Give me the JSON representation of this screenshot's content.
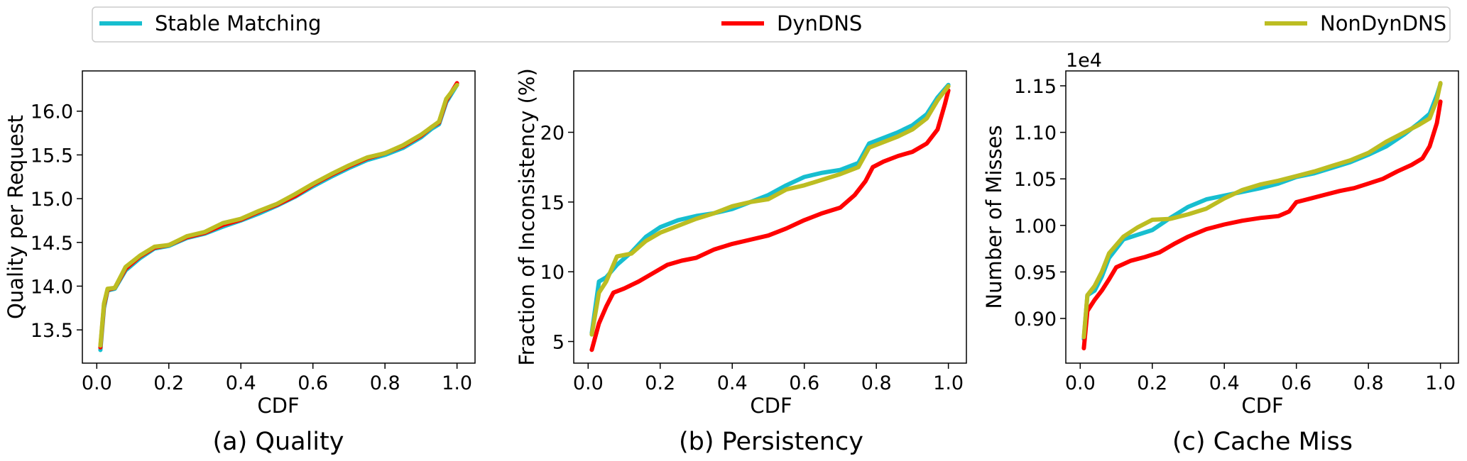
{
  "legend": [
    {
      "name": "Stable Matching",
      "color": "#17becf"
    },
    {
      "name": "DynDNS",
      "color": "#ff0000"
    },
    {
      "name": "NonDynDNS",
      "color": "#bcbd22"
    }
  ],
  "chart_data": [
    {
      "type": "line",
      "caption": "(a)  Quality",
      "xlabel": "CDF",
      "ylabel": "Quality per Request",
      "xlim": [
        -0.04,
        1.05
      ],
      "ylim": [
        13.12,
        16.46
      ],
      "xticks": [
        0.0,
        0.2,
        0.4,
        0.6,
        0.8,
        1.0
      ],
      "xtick_labels": [
        "0.0",
        "0.2",
        "0.4",
        "0.6",
        "0.8",
        "1.0"
      ],
      "yticks": [
        13.5,
        14.0,
        14.5,
        15.0,
        15.5,
        16.0
      ],
      "ytick_labels": [
        "13.5",
        "14.0",
        "14.5",
        "15.0",
        "15.5",
        "16.0"
      ],
      "offset_text": "",
      "grid": false,
      "series": [
        {
          "name": "Stable Matching",
          "color": "#17becf",
          "points": [
            [
              0.01,
              13.27
            ],
            [
              0.02,
              13.75
            ],
            [
              0.03,
              13.95
            ],
            [
              0.05,
              13.97
            ],
            [
              0.08,
              14.18
            ],
            [
              0.12,
              14.32
            ],
            [
              0.16,
              14.43
            ],
            [
              0.2,
              14.46
            ],
            [
              0.25,
              14.55
            ],
            [
              0.3,
              14.6
            ],
            [
              0.35,
              14.68
            ],
            [
              0.4,
              14.75
            ],
            [
              0.45,
              14.83
            ],
            [
              0.5,
              14.92
            ],
            [
              0.55,
              15.02
            ],
            [
              0.6,
              15.14
            ],
            [
              0.65,
              15.25
            ],
            [
              0.7,
              15.35
            ],
            [
              0.75,
              15.44
            ],
            [
              0.8,
              15.5
            ],
            [
              0.85,
              15.58
            ],
            [
              0.9,
              15.7
            ],
            [
              0.93,
              15.8
            ],
            [
              0.95,
              15.85
            ],
            [
              0.97,
              16.1
            ],
            [
              1.0,
              16.3
            ]
          ]
        },
        {
          "name": "DynDNS",
          "color": "#ff0000",
          "points": [
            [
              0.01,
              13.3
            ],
            [
              0.02,
              13.78
            ],
            [
              0.03,
              13.96
            ],
            [
              0.05,
              13.98
            ],
            [
              0.08,
              14.2
            ],
            [
              0.12,
              14.34
            ],
            [
              0.16,
              14.44
            ],
            [
              0.2,
              14.47
            ],
            [
              0.25,
              14.56
            ],
            [
              0.3,
              14.61
            ],
            [
              0.35,
              14.7
            ],
            [
              0.4,
              14.76
            ],
            [
              0.45,
              14.85
            ],
            [
              0.5,
              14.93
            ],
            [
              0.55,
              15.03
            ],
            [
              0.6,
              15.16
            ],
            [
              0.65,
              15.27
            ],
            [
              0.7,
              15.37
            ],
            [
              0.75,
              15.46
            ],
            [
              0.8,
              15.52
            ],
            [
              0.85,
              15.6
            ],
            [
              0.9,
              15.72
            ],
            [
              0.93,
              15.82
            ],
            [
              0.95,
              15.87
            ],
            [
              0.97,
              16.12
            ],
            [
              1.0,
              16.32
            ]
          ]
        },
        {
          "name": "NonDynDNS",
          "color": "#bcbd22",
          "points": [
            [
              0.01,
              13.32
            ],
            [
              0.02,
              13.8
            ],
            [
              0.03,
              13.97
            ],
            [
              0.05,
              13.98
            ],
            [
              0.08,
              14.22
            ],
            [
              0.12,
              14.35
            ],
            [
              0.16,
              14.45
            ],
            [
              0.2,
              14.47
            ],
            [
              0.25,
              14.57
            ],
            [
              0.3,
              14.62
            ],
            [
              0.35,
              14.72
            ],
            [
              0.4,
              14.77
            ],
            [
              0.45,
              14.86
            ],
            [
              0.5,
              14.94
            ],
            [
              0.55,
              15.05
            ],
            [
              0.6,
              15.17
            ],
            [
              0.65,
              15.28
            ],
            [
              0.7,
              15.38
            ],
            [
              0.75,
              15.47
            ],
            [
              0.8,
              15.52
            ],
            [
              0.85,
              15.61
            ],
            [
              0.9,
              15.73
            ],
            [
              0.93,
              15.82
            ],
            [
              0.95,
              15.88
            ],
            [
              0.97,
              16.14
            ],
            [
              1.0,
              16.3
            ]
          ]
        }
      ]
    },
    {
      "type": "line",
      "caption": "(b)  Persistency",
      "xlabel": "CDF",
      "ylabel": "Fraction of Inconsistency (%)",
      "xlim": [
        -0.04,
        1.05
      ],
      "ylim": [
        3.45,
        24.4
      ],
      "xticks": [
        0.0,
        0.2,
        0.4,
        0.6,
        0.8,
        1.0
      ],
      "xtick_labels": [
        "0.0",
        "0.2",
        "0.4",
        "0.6",
        "0.8",
        "1.0"
      ],
      "yticks": [
        5,
        10,
        15,
        20
      ],
      "ytick_labels": [
        "5",
        "10",
        "15",
        "20"
      ],
      "offset_text": "",
      "grid": false,
      "series": [
        {
          "name": "Stable Matching",
          "color": "#17becf",
          "points": [
            [
              0.01,
              5.6
            ],
            [
              0.03,
              9.3
            ],
            [
              0.05,
              9.6
            ],
            [
              0.08,
              10.5
            ],
            [
              0.12,
              11.4
            ],
            [
              0.16,
              12.5
            ],
            [
              0.2,
              13.2
            ],
            [
              0.25,
              13.7
            ],
            [
              0.3,
              14.0
            ],
            [
              0.35,
              14.2
            ],
            [
              0.4,
              14.5
            ],
            [
              0.45,
              15.0
            ],
            [
              0.5,
              15.5
            ],
            [
              0.55,
              16.2
            ],
            [
              0.6,
              16.8
            ],
            [
              0.65,
              17.1
            ],
            [
              0.7,
              17.3
            ],
            [
              0.75,
              17.8
            ],
            [
              0.78,
              19.2
            ],
            [
              0.82,
              19.6
            ],
            [
              0.86,
              20.0
            ],
            [
              0.9,
              20.5
            ],
            [
              0.94,
              21.3
            ],
            [
              0.97,
              22.5
            ],
            [
              1.0,
              23.4
            ]
          ]
        },
        {
          "name": "DynDNS",
          "color": "#ff0000",
          "points": [
            [
              0.01,
              4.4
            ],
            [
              0.03,
              6.3
            ],
            [
              0.05,
              7.5
            ],
            [
              0.07,
              8.5
            ],
            [
              0.1,
              8.8
            ],
            [
              0.14,
              9.3
            ],
            [
              0.18,
              9.9
            ],
            [
              0.22,
              10.5
            ],
            [
              0.26,
              10.8
            ],
            [
              0.3,
              11.0
            ],
            [
              0.35,
              11.6
            ],
            [
              0.4,
              12.0
            ],
            [
              0.45,
              12.3
            ],
            [
              0.5,
              12.6
            ],
            [
              0.55,
              13.1
            ],
            [
              0.6,
              13.7
            ],
            [
              0.65,
              14.2
            ],
            [
              0.7,
              14.6
            ],
            [
              0.74,
              15.5
            ],
            [
              0.77,
              16.5
            ],
            [
              0.79,
              17.5
            ],
            [
              0.82,
              17.9
            ],
            [
              0.86,
              18.3
            ],
            [
              0.9,
              18.6
            ],
            [
              0.94,
              19.2
            ],
            [
              0.97,
              20.2
            ],
            [
              0.99,
              22.0
            ],
            [
              1.0,
              23.0
            ]
          ]
        },
        {
          "name": "NonDynDNS",
          "color": "#bcbd22",
          "points": [
            [
              0.01,
              5.5
            ],
            [
              0.03,
              8.5
            ],
            [
              0.05,
              9.3
            ],
            [
              0.08,
              11.1
            ],
            [
              0.12,
              11.3
            ],
            [
              0.16,
              12.2
            ],
            [
              0.2,
              12.8
            ],
            [
              0.25,
              13.3
            ],
            [
              0.3,
              13.8
            ],
            [
              0.35,
              14.2
            ],
            [
              0.4,
              14.7
            ],
            [
              0.45,
              15.0
            ],
            [
              0.5,
              15.2
            ],
            [
              0.55,
              15.9
            ],
            [
              0.6,
              16.2
            ],
            [
              0.65,
              16.6
            ],
            [
              0.7,
              17.0
            ],
            [
              0.75,
              17.5
            ],
            [
              0.78,
              18.9
            ],
            [
              0.82,
              19.3
            ],
            [
              0.86,
              19.7
            ],
            [
              0.9,
              20.2
            ],
            [
              0.94,
              21.0
            ],
            [
              0.97,
              22.3
            ],
            [
              1.0,
              23.3
            ]
          ]
        }
      ]
    },
    {
      "type": "line",
      "caption": "(c)  Cache Miss",
      "xlabel": "CDF",
      "ylabel": "Number of Misses",
      "xlim": [
        -0.04,
        1.05
      ],
      "ylim": [
        8520,
        11660
      ],
      "xticks": [
        0.0,
        0.2,
        0.4,
        0.6,
        0.8,
        1.0
      ],
      "xtick_labels": [
        "0.0",
        "0.2",
        "0.4",
        "0.6",
        "0.8",
        "1.0"
      ],
      "yticks": [
        9000,
        9500,
        10000,
        10500,
        11000,
        11500
      ],
      "ytick_labels": [
        "0.90",
        "0.95",
        "1.00",
        "1.05",
        "1.10",
        "1.15"
      ],
      "offset_text": "1e4",
      "grid": false,
      "series": [
        {
          "name": "Stable Matching",
          "color": "#17becf",
          "points": [
            [
              0.01,
              8780
            ],
            [
              0.02,
              9250
            ],
            [
              0.04,
              9300
            ],
            [
              0.06,
              9450
            ],
            [
              0.08,
              9650
            ],
            [
              0.12,
              9850
            ],
            [
              0.16,
              9900
            ],
            [
              0.2,
              9950
            ],
            [
              0.25,
              10080
            ],
            [
              0.3,
              10200
            ],
            [
              0.35,
              10280
            ],
            [
              0.4,
              10320
            ],
            [
              0.45,
              10360
            ],
            [
              0.5,
              10400
            ],
            [
              0.55,
              10450
            ],
            [
              0.6,
              10520
            ],
            [
              0.65,
              10560
            ],
            [
              0.7,
              10620
            ],
            [
              0.75,
              10680
            ],
            [
              0.8,
              10760
            ],
            [
              0.85,
              10850
            ],
            [
              0.9,
              10980
            ],
            [
              0.94,
              11100
            ],
            [
              0.97,
              11200
            ],
            [
              0.99,
              11400
            ],
            [
              1.0,
              11520
            ]
          ]
        },
        {
          "name": "DynDNS",
          "color": "#ff0000",
          "points": [
            [
              0.01,
              8680
            ],
            [
              0.02,
              9080
            ],
            [
              0.04,
              9200
            ],
            [
              0.06,
              9300
            ],
            [
              0.08,
              9420
            ],
            [
              0.1,
              9550
            ],
            [
              0.14,
              9620
            ],
            [
              0.18,
              9660
            ],
            [
              0.22,
              9710
            ],
            [
              0.26,
              9800
            ],
            [
              0.3,
              9880
            ],
            [
              0.35,
              9960
            ],
            [
              0.4,
              10010
            ],
            [
              0.45,
              10050
            ],
            [
              0.5,
              10080
            ],
            [
              0.55,
              10100
            ],
            [
              0.58,
              10150
            ],
            [
              0.6,
              10250
            ],
            [
              0.64,
              10290
            ],
            [
              0.68,
              10330
            ],
            [
              0.72,
              10370
            ],
            [
              0.76,
              10400
            ],
            [
              0.8,
              10450
            ],
            [
              0.84,
              10500
            ],
            [
              0.88,
              10580
            ],
            [
              0.92,
              10650
            ],
            [
              0.95,
              10720
            ],
            [
              0.97,
              10850
            ],
            [
              0.99,
              11100
            ],
            [
              1.0,
              11330
            ]
          ]
        },
        {
          "name": "NonDynDNS",
          "color": "#bcbd22",
          "points": [
            [
              0.01,
              8800
            ],
            [
              0.02,
              9250
            ],
            [
              0.04,
              9350
            ],
            [
              0.06,
              9500
            ],
            [
              0.08,
              9700
            ],
            [
              0.12,
              9880
            ],
            [
              0.16,
              9980
            ],
            [
              0.2,
              10060
            ],
            [
              0.25,
              10070
            ],
            [
              0.3,
              10120
            ],
            [
              0.35,
              10180
            ],
            [
              0.4,
              10290
            ],
            [
              0.45,
              10380
            ],
            [
              0.5,
              10440
            ],
            [
              0.55,
              10480
            ],
            [
              0.6,
              10530
            ],
            [
              0.65,
              10580
            ],
            [
              0.7,
              10640
            ],
            [
              0.75,
              10700
            ],
            [
              0.8,
              10780
            ],
            [
              0.85,
              10900
            ],
            [
              0.9,
              11000
            ],
            [
              0.94,
              11080
            ],
            [
              0.97,
              11150
            ],
            [
              0.99,
              11350
            ],
            [
              1.0,
              11530
            ]
          ]
        }
      ]
    }
  ]
}
